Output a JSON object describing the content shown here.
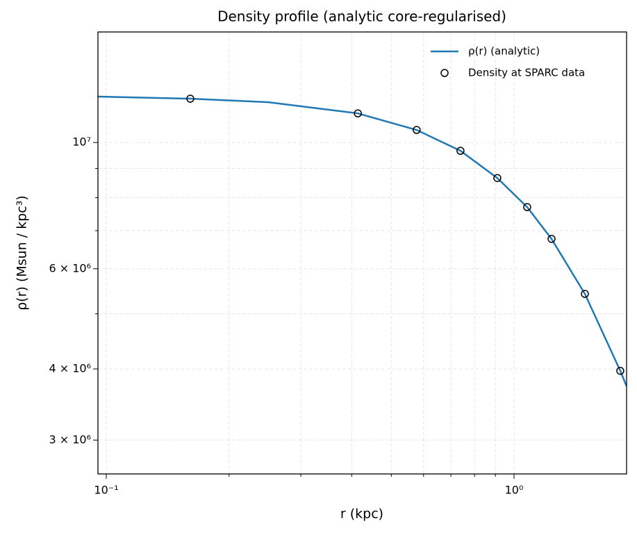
{
  "chart_data": {
    "type": "line",
    "title": "Density profile (analytic core-regularised)",
    "x_label": "r (kpc)",
    "y_label": "ρ(r) (Msun / kpc³)",
    "log_x": true,
    "log_y": true,
    "grid": true,
    "legend_position": "upper right",
    "xlim": [
      0.0954,
      1.888
    ],
    "ylim": [
      2616000,
      15640000
    ],
    "xticks": [
      {
        "value": 0.1,
        "label": "10⁻¹"
      },
      {
        "value": 1,
        "label": "10⁰"
      }
    ],
    "xminorticks": [
      0.2,
      0.3,
      0.4,
      0.5,
      0.6,
      0.7,
      0.8,
      0.9
    ],
    "yticks": [
      {
        "value": 3000000,
        "label": "3 × 10⁶"
      },
      {
        "value": 4000000,
        "label": "4 × 10⁶"
      },
      {
        "value": 6000000,
        "label": "6 × 10⁶"
      },
      {
        "value": 10000000,
        "label": "10⁷"
      }
    ],
    "yminorticks": [
      5000000,
      7000000,
      8000000,
      9000000
    ],
    "series": [
      {
        "name": "ρ(r) (analytic)",
        "type": "line",
        "color": "#1f77b4",
        "x": [
          0.0954,
          0.1607,
          0.25,
          0.414,
          0.577,
          0.739,
          0.91,
          1.077,
          1.236,
          1.492,
          1.822,
          1.888
        ],
        "values": [
          12040000,
          11940000,
          11770000,
          11250000,
          10520000,
          9670000,
          8660000,
          7700000,
          6770000,
          5420000,
          3970000,
          3730000
        ]
      },
      {
        "name": "Density at SPARC data",
        "type": "scatter",
        "color": "#000000",
        "x": [
          0.1607,
          0.414,
          0.577,
          0.739,
          0.91,
          1.077,
          1.236,
          1.492,
          1.822
        ],
        "values": [
          11940000,
          11250000,
          10520000,
          9670000,
          8660000,
          7700000,
          6770000,
          5420000,
          3970000
        ]
      }
    ]
  }
}
